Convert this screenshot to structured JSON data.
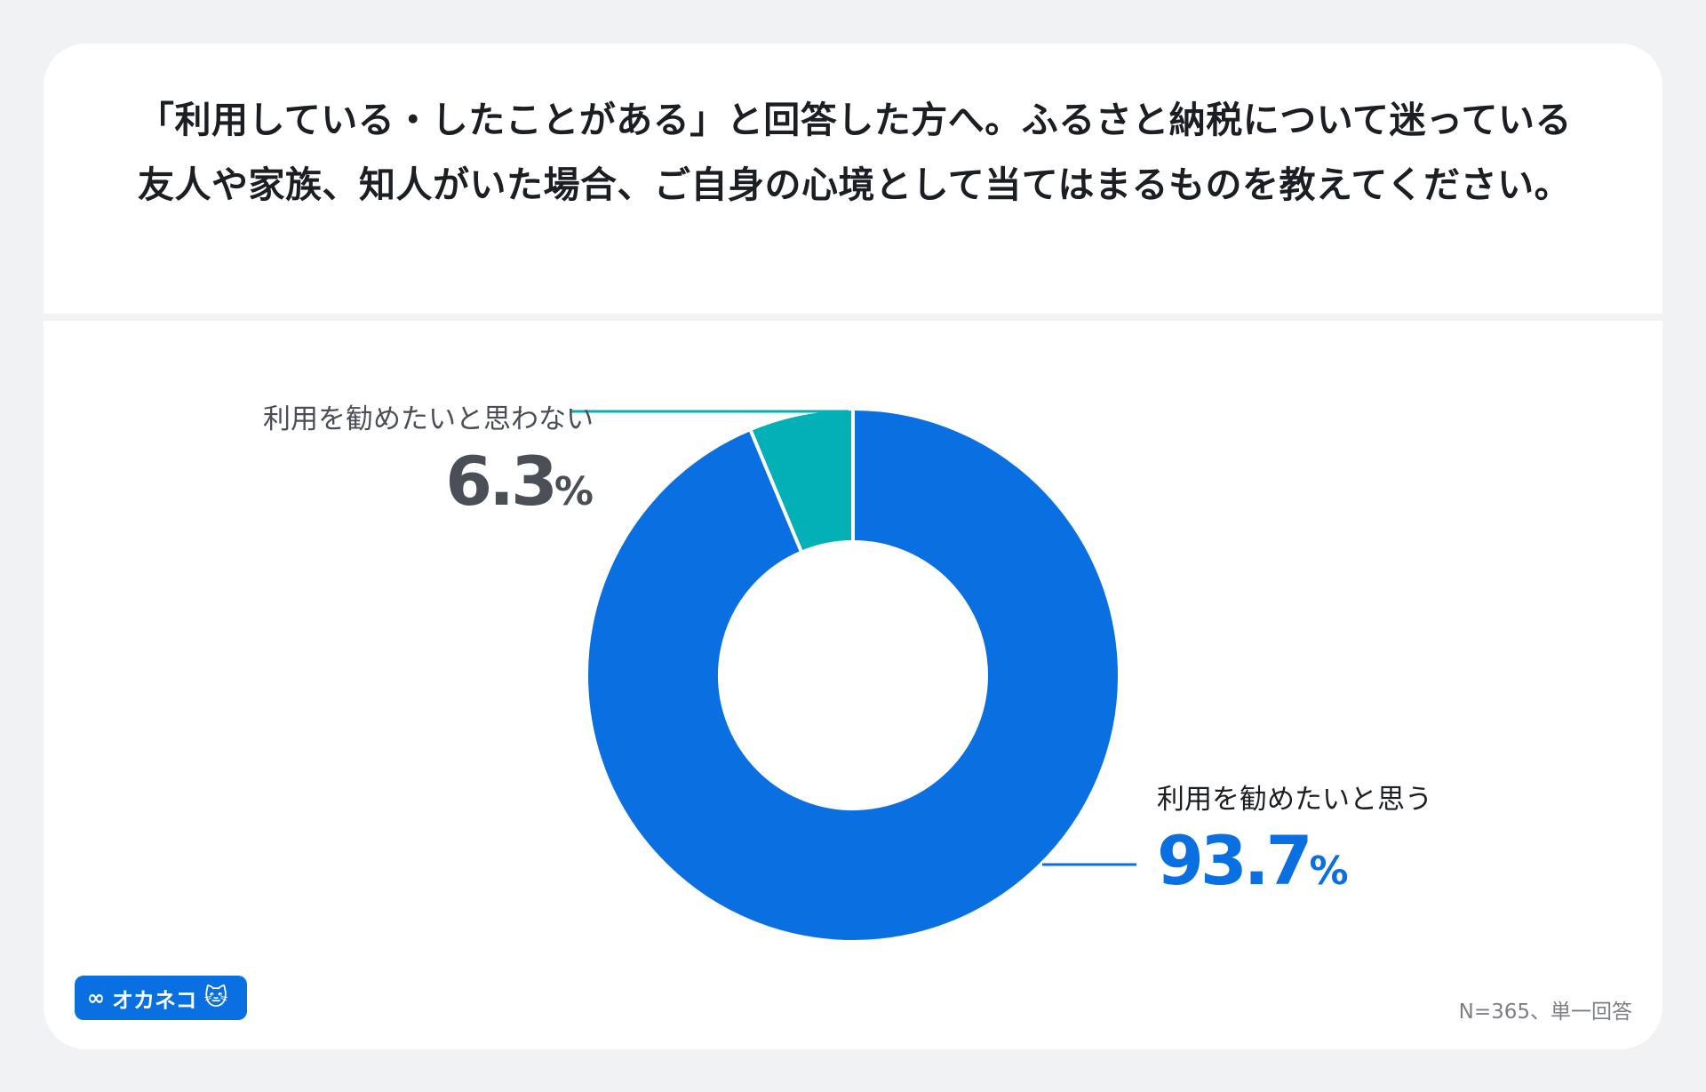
{
  "title": "「利用している・したことがある」と回答した方へ。ふるさと納税について迷っている友人や家族、知人がいた場合、ご自身の心境として当てはまるものを教えてください。",
  "chart_data": {
    "type": "pie",
    "donut": true,
    "categories": [
      "利用を勧めたいと思う",
      "利用を勧めたいと思わない"
    ],
    "values": [
      93.7,
      6.3
    ],
    "value_labels": [
      "93.7",
      "6.3"
    ],
    "unit": "%",
    "colors": [
      "#0a6fe0",
      "#03b0b6"
    ],
    "label_colors": [
      "#0a6fe0",
      "#4a4f57"
    ]
  },
  "footnote": "N=365、単一回答",
  "logo": {
    "text": "オカネコ",
    "icon": "glasses-icon",
    "mascot": "cat-icon"
  }
}
